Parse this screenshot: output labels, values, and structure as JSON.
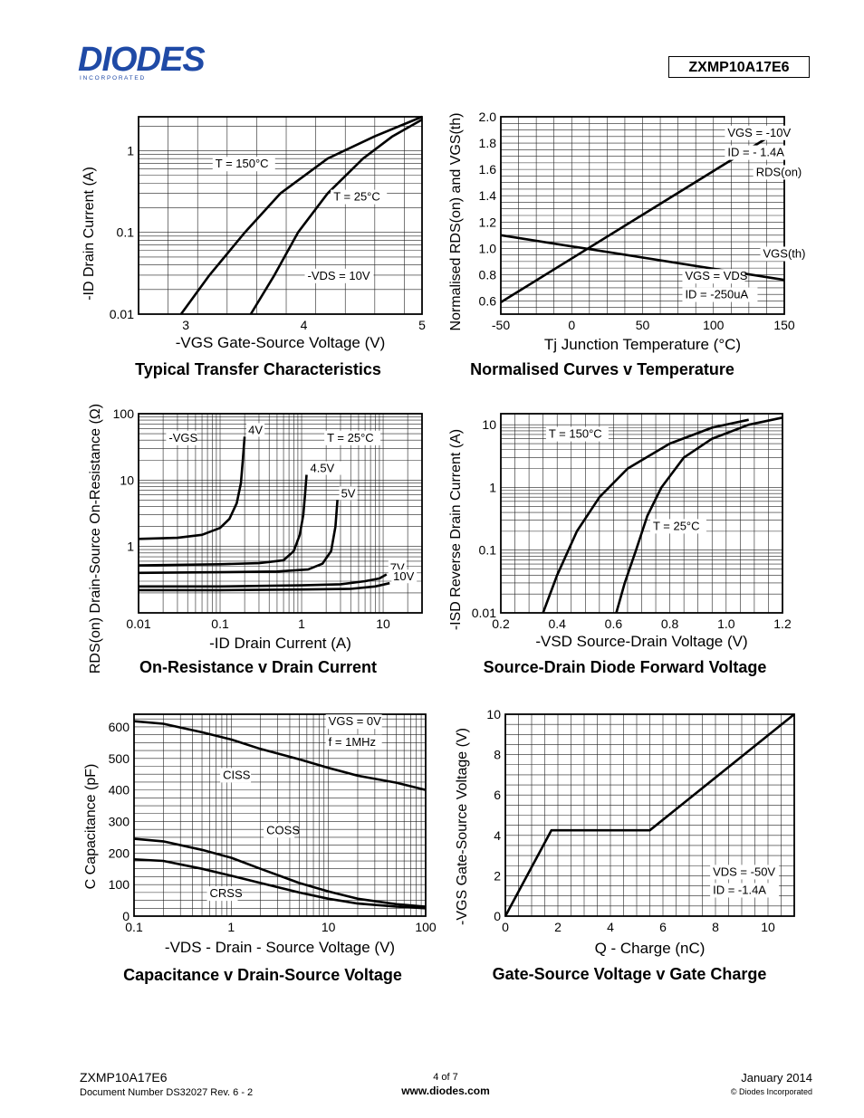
{
  "header": {
    "logo_text": "DIODES",
    "logo_subtext": "I N C O R P O R A T E D",
    "part_number": "ZXMP10A17E6"
  },
  "footer": {
    "part_number": "ZXMP10A17E6",
    "doc_number": "Document Number DS32027  Rev. 6 - 2",
    "page": "4 of 7",
    "website": "www.diodes.com",
    "date": "January 2014",
    "copyright": "© Diodes Incorporated"
  },
  "chart_data": [
    {
      "id": "transfer",
      "type": "line",
      "title": "Typical Transfer Characteristics",
      "xlabel": "-VGS  Gate-Source Voltage (V)",
      "ylabel": "-ID  Drain Current (A)",
      "xlim": [
        2.6,
        5
      ],
      "ylim": [
        0.01,
        2.6
      ],
      "yscale": "log",
      "xticks": [
        3,
        4,
        5
      ],
      "yticks": [
        0.01,
        0.1,
        1
      ],
      "ytick_labels": [
        "0.01",
        "0.1",
        "1"
      ],
      "grid": true,
      "series": [
        {
          "name": "T = 150°C",
          "points": [
            [
              2.96,
              0.01
            ],
            [
              3.2,
              0.03
            ],
            [
              3.5,
              0.1
            ],
            [
              3.8,
              0.3
            ],
            [
              4.2,
              0.8
            ],
            [
              4.6,
              1.5
            ],
            [
              5.0,
              2.6
            ]
          ]
        },
        {
          "name": "T = 25°C",
          "points": [
            [
              3.55,
              0.01
            ],
            [
              3.75,
              0.03
            ],
            [
              3.95,
              0.1
            ],
            [
              4.2,
              0.3
            ],
            [
              4.5,
              0.8
            ],
            [
              4.75,
              1.5
            ],
            [
              5.0,
              2.4
            ]
          ]
        }
      ],
      "annotations": [
        {
          "text": "T = 150°C",
          "at": [
            3.25,
            0.62
          ]
        },
        {
          "text": "T = 25°C",
          "at": [
            4.25,
            0.245
          ]
        },
        {
          "text": "-VDS = 10V",
          "at": [
            4.03,
            0.0265
          ]
        }
      ]
    },
    {
      "id": "normalised",
      "type": "line",
      "title": "Normalised Curves v Temperature",
      "xlabel": "Tj  Junction Temperature (°C)",
      "ylabel": "Normalised RDS(on) and VGS(th)",
      "xlim": [
        -50,
        150
      ],
      "ylim": [
        0.5,
        2.0
      ],
      "xticks": [
        -50,
        0,
        50,
        100,
        150
      ],
      "yticks": [
        0.6,
        0.8,
        1.0,
        1.2,
        1.4,
        1.6,
        1.8,
        2.0
      ],
      "ytick_labels": [
        "0.6",
        "0.8",
        "1.0",
        "1.2",
        "1.4",
        "1.6",
        "1.8",
        "2.0"
      ],
      "grid": true,
      "series": [
        {
          "name": "RDS(on)",
          "points": [
            [
              -50,
              0.59
            ],
            [
              150,
              1.92
            ]
          ]
        },
        {
          "name": "VGS(th)",
          "points": [
            [
              -50,
              1.1
            ],
            [
              150,
              0.76
            ]
          ]
        }
      ],
      "annotations": [
        {
          "text": "VGS = -10V",
          "at": [
            110,
            1.85
          ]
        },
        {
          "text": "ID = - 1.4A",
          "at": [
            110,
            1.7
          ]
        },
        {
          "text": "RDS(on)",
          "at": [
            130,
            1.55
          ]
        },
        {
          "text": "VGS(th)",
          "at": [
            135,
            0.93
          ]
        },
        {
          "text": "VGS = VDS",
          "at": [
            80,
            0.76
          ]
        },
        {
          "text": "ID = -250uA",
          "at": [
            80,
            0.62
          ]
        }
      ]
    },
    {
      "id": "onres",
      "type": "line",
      "title": "On-Resistance v Drain Current",
      "xlabel": "-ID  Drain Current (A)",
      "ylabel": "RDS(on)  Drain-Source On-Resistance (Ω)",
      "xlim": [
        0.01,
        30
      ],
      "ylim": [
        0.1,
        100
      ],
      "xscale": "log",
      "yscale": "log",
      "xticks": [
        0.01,
        0.1,
        1,
        10
      ],
      "xtick_labels": [
        "0.01",
        "0.1",
        "1",
        "10"
      ],
      "yticks": [
        1,
        10,
        100
      ],
      "ytick_labels": [
        "1",
        "10",
        "100"
      ],
      "grid": true,
      "series": [
        {
          "name": "4V",
          "points": [
            [
              0.01,
              1.3
            ],
            [
              0.03,
              1.35
            ],
            [
              0.06,
              1.5
            ],
            [
              0.1,
              1.9
            ],
            [
              0.13,
              2.6
            ],
            [
              0.16,
              4.5
            ],
            [
              0.18,
              9
            ],
            [
              0.19,
              20
            ],
            [
              0.2,
              45
            ]
          ]
        },
        {
          "name": "4.5V",
          "points": [
            [
              0.01,
              0.52
            ],
            [
              0.1,
              0.54
            ],
            [
              0.3,
              0.56
            ],
            [
              0.6,
              0.62
            ],
            [
              0.8,
              0.85
            ],
            [
              0.95,
              1.5
            ],
            [
              1.05,
              3
            ],
            [
              1.1,
              6
            ],
            [
              1.15,
              12
            ]
          ]
        },
        {
          "name": "5V",
          "points": [
            [
              0.01,
              0.4
            ],
            [
              0.1,
              0.41
            ],
            [
              0.5,
              0.42
            ],
            [
              1.2,
              0.45
            ],
            [
              1.8,
              0.55
            ],
            [
              2.3,
              0.85
            ],
            [
              2.6,
              2
            ],
            [
              2.75,
              5
            ]
          ]
        },
        {
          "name": "7V",
          "points": [
            [
              0.01,
              0.25
            ],
            [
              0.1,
              0.25
            ],
            [
              1,
              0.26
            ],
            [
              3,
              0.27
            ],
            [
              6,
              0.3
            ],
            [
              9,
              0.33
            ],
            [
              11,
              0.38
            ]
          ]
        },
        {
          "name": "10V",
          "points": [
            [
              0.01,
              0.22
            ],
            [
              0.1,
              0.22
            ],
            [
              1,
              0.225
            ],
            [
              4,
              0.23
            ],
            [
              8,
              0.25
            ],
            [
              12,
              0.28
            ]
          ]
        }
      ],
      "annotations": [
        {
          "text": "-VGS",
          "at": [
            0.0235,
            38
          ]
        },
        {
          "text": "T = 25°C",
          "at": [
            2.05,
            38
          ]
        }
      ]
    },
    {
      "id": "diode",
      "type": "line",
      "title": "Source-Drain Diode Forward Voltage",
      "xlabel": "-VSD  Source-Drain Voltage (V)",
      "ylabel": "-ISD  Reverse Drain Current (A)",
      "xlim": [
        0.2,
        1.2
      ],
      "ylim": [
        0.01,
        15
      ],
      "yscale": "log",
      "xticks": [
        0.2,
        0.4,
        0.6,
        0.8,
        1.0,
        1.2
      ],
      "xtick_labels": [
        "0.2",
        "0.4",
        "0.6",
        "0.8",
        "1.0",
        "1.2"
      ],
      "yticks": [
        0.01,
        0.1,
        1,
        10
      ],
      "ytick_labels": [
        "0.01",
        "0.1",
        "1",
        "10"
      ],
      "grid": true,
      "series": [
        {
          "name": "T = 150°C",
          "points": [
            [
              0.35,
              0.01
            ],
            [
              0.4,
              0.04
            ],
            [
              0.47,
              0.2
            ],
            [
              0.55,
              0.7
            ],
            [
              0.65,
              2
            ],
            [
              0.8,
              5
            ],
            [
              0.95,
              9
            ],
            [
              1.08,
              12
            ]
          ]
        },
        {
          "name": "T = 25°C",
          "points": [
            [
              0.61,
              0.01
            ],
            [
              0.64,
              0.03
            ],
            [
              0.68,
              0.1
            ],
            [
              0.72,
              0.35
            ],
            [
              0.77,
              1
            ],
            [
              0.85,
              3
            ],
            [
              0.95,
              6
            ],
            [
              1.08,
              10
            ],
            [
              1.2,
              13
            ]
          ]
        }
      ],
      "annotations": [
        {
          "text": "T = 150°C",
          "at": [
            0.37,
            6.2
          ]
        },
        {
          "text": "T = 25°C",
          "at": [
            0.74,
            0.21
          ]
        }
      ]
    },
    {
      "id": "capacitance",
      "type": "line",
      "title": "Capacitance v Drain-Source Voltage",
      "xlabel": "-VDS  - Drain - Source Voltage (V)",
      "ylabel": "C  Capacitance (pF)",
      "xlim": [
        0.1,
        100
      ],
      "ylim": [
        0,
        640
      ],
      "xscale": "log",
      "xticks": [
        0.1,
        1,
        10,
        100
      ],
      "xtick_labels": [
        "0.1",
        "1",
        "10",
        "100"
      ],
      "yticks": [
        0,
        100,
        200,
        300,
        400,
        500,
        600
      ],
      "ytick_labels": [
        "0",
        "100",
        "200",
        "300",
        "400",
        "500",
        "600"
      ],
      "grid": true,
      "series": [
        {
          "name": "CISS",
          "points": [
            [
              0.1,
              618
            ],
            [
              0.2,
              610
            ],
            [
              0.5,
              583
            ],
            [
              1,
              560
            ],
            [
              2,
              530
            ],
            [
              5,
              497
            ],
            [
              10,
              470
            ],
            [
              20,
              445
            ],
            [
              50,
              423
            ],
            [
              100,
              400
            ]
          ]
        },
        {
          "name": "COSS",
          "points": [
            [
              0.1,
              245
            ],
            [
              0.2,
              237
            ],
            [
              0.5,
              210
            ],
            [
              1,
              185
            ],
            [
              2,
              150
            ],
            [
              5,
              105
            ],
            [
              10,
              78
            ],
            [
              20,
              55
            ],
            [
              50,
              38
            ],
            [
              100,
              30
            ]
          ]
        },
        {
          "name": "CRSS",
          "points": [
            [
              0.1,
              180
            ],
            [
              0.2,
              175
            ],
            [
              0.5,
              150
            ],
            [
              1,
              128
            ],
            [
              2,
              105
            ],
            [
              5,
              75
            ],
            [
              10,
              55
            ],
            [
              20,
              40
            ],
            [
              50,
              30
            ],
            [
              100,
              25
            ]
          ]
        }
      ],
      "annotations": [
        {
          "text": "VGS = 0V",
          "at": [
            10,
            605
          ]
        },
        {
          "text": "f = 1MHz",
          "at": [
            10,
            540
          ]
        },
        {
          "text": "CISS",
          "at": [
            0.82,
            435
          ]
        },
        {
          "text": "COSS",
          "at": [
            2.3,
            260
          ]
        },
        {
          "text": "CRSS",
          "at": [
            0.6,
            60
          ]
        }
      ]
    },
    {
      "id": "gatecharge",
      "type": "line",
      "title": "Gate-Source Voltage v Gate Charge",
      "xlabel": "Q - Charge (nC)",
      "ylabel": "-VGS  Gate-Source Voltage (V)",
      "xlim": [
        0,
        11
      ],
      "ylim": [
        0,
        10
      ],
      "xticks": [
        0,
        2,
        4,
        6,
        8,
        10
      ],
      "yticks": [
        0,
        2,
        4,
        6,
        8,
        10
      ],
      "grid": true,
      "series": [
        {
          "name": "VGS",
          "points": [
            [
              0,
              0
            ],
            [
              1.75,
              4.25
            ],
            [
              5.5,
              4.25
            ],
            [
              11,
              10
            ]
          ]
        }
      ],
      "annotations": [
        {
          "text": "VDS = -50V",
          "at": [
            7.9,
            2.0
          ]
        },
        {
          "text": "ID = -1.4A",
          "at": [
            7.9,
            1.1
          ]
        }
      ]
    }
  ]
}
